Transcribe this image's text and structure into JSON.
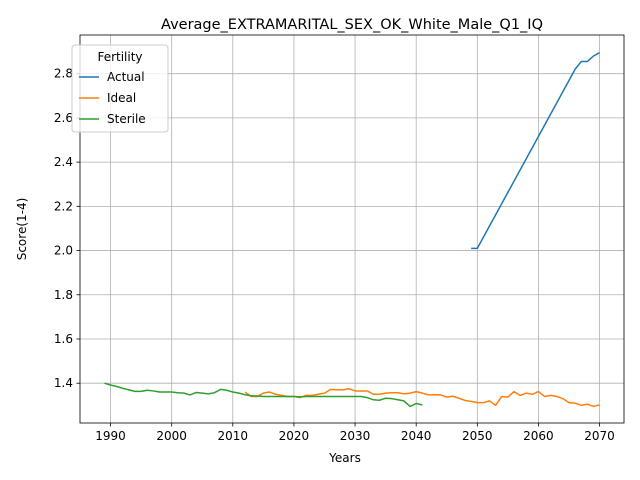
{
  "chart_data": {
    "type": "line",
    "title": "Average_EXTRAMARITAL_SEX_OK_White_Male_Q1_IQ",
    "xlabel": "Years",
    "ylabel": "Score(1-4)",
    "xlim": [
      1985,
      2074
    ],
    "ylim": [
      1.22,
      2.975
    ],
    "x_ticks": [
      1990,
      2000,
      2010,
      2020,
      2030,
      2040,
      2050,
      2060,
      2070
    ],
    "y_ticks": [
      1.4,
      1.6,
      1.8,
      2.0,
      2.2,
      2.4,
      2.6,
      2.8
    ],
    "y_tick_labels": [
      "1.4",
      "1.6",
      "1.8",
      "2.0",
      "2.2",
      "2.4",
      "2.6",
      "2.8"
    ],
    "grid": true,
    "legend": {
      "title": "Fertility",
      "placement": "top-left"
    },
    "series": [
      {
        "name": "Actual",
        "color": "#1f77b4",
        "x": [
          2049,
          2050,
          2066,
          2067,
          2068,
          2069,
          2070
        ],
        "y": [
          2.01,
          2.01,
          2.82,
          2.855,
          2.855,
          2.88,
          2.895
        ]
      },
      {
        "name": "Ideal",
        "color": "#ff7f0e",
        "x": [
          2012,
          2013,
          2014,
          2015,
          2016,
          2017,
          2018,
          2019,
          2020,
          2021,
          2022,
          2023,
          2024,
          2025,
          2026,
          2027,
          2028,
          2029,
          2030,
          2031,
          2032,
          2033,
          2034,
          2035,
          2036,
          2037,
          2038,
          2039,
          2040,
          2041,
          2042,
          2043,
          2044,
          2045,
          2046,
          2047,
          2048,
          2049,
          2050,
          2051,
          2052,
          2053,
          2054,
          2055,
          2056,
          2057,
          2058,
          2059,
          2060,
          2061,
          2062,
          2063,
          2064,
          2065,
          2066,
          2067,
          2068,
          2069,
          2070
        ],
        "y": [
          1.36,
          1.34,
          1.34,
          1.355,
          1.36,
          1.35,
          1.345,
          1.34,
          1.34,
          1.335,
          1.345,
          1.345,
          1.35,
          1.355,
          1.372,
          1.37,
          1.37,
          1.375,
          1.365,
          1.365,
          1.365,
          1.35,
          1.35,
          1.355,
          1.357,
          1.357,
          1.352,
          1.355,
          1.362,
          1.355,
          1.347,
          1.348,
          1.347,
          1.337,
          1.341,
          1.332,
          1.322,
          1.318,
          1.312,
          1.312,
          1.32,
          1.3,
          1.34,
          1.337,
          1.362,
          1.345,
          1.355,
          1.35,
          1.362,
          1.34,
          1.345,
          1.34,
          1.33,
          1.312,
          1.31,
          1.3,
          1.305,
          1.295,
          1.302
        ]
      },
      {
        "name": "Sterile",
        "color": "#2ca02c",
        "x": [
          1989,
          1990,
          1991,
          1992,
          1993,
          1994,
          1995,
          1996,
          1997,
          1998,
          1999,
          2000,
          2001,
          2002,
          2003,
          2004,
          2005,
          2006,
          2007,
          2008,
          2009,
          2010,
          2011,
          2012,
          2013,
          2014,
          2015,
          2016,
          2017,
          2018,
          2019,
          2020,
          2021,
          2022,
          2023,
          2024,
          2025,
          2026,
          2027,
          2028,
          2029,
          2030,
          2031,
          2032,
          2033,
          2034,
          2035,
          2036,
          2037,
          2038,
          2039,
          2040,
          2041
        ],
        "y": [
          1.4,
          1.392,
          1.385,
          1.377,
          1.37,
          1.363,
          1.363,
          1.368,
          1.365,
          1.36,
          1.36,
          1.36,
          1.357,
          1.355,
          1.347,
          1.358,
          1.355,
          1.352,
          1.357,
          1.372,
          1.368,
          1.36,
          1.355,
          1.348,
          1.343,
          1.342,
          1.34,
          1.34,
          1.34,
          1.34,
          1.34,
          1.34,
          1.338,
          1.34,
          1.34,
          1.34,
          1.34,
          1.34,
          1.34,
          1.34,
          1.34,
          1.34,
          1.34,
          1.335,
          1.325,
          1.323,
          1.332,
          1.33,
          1.325,
          1.32,
          1.295,
          1.308,
          1.302
        ]
      }
    ]
  }
}
